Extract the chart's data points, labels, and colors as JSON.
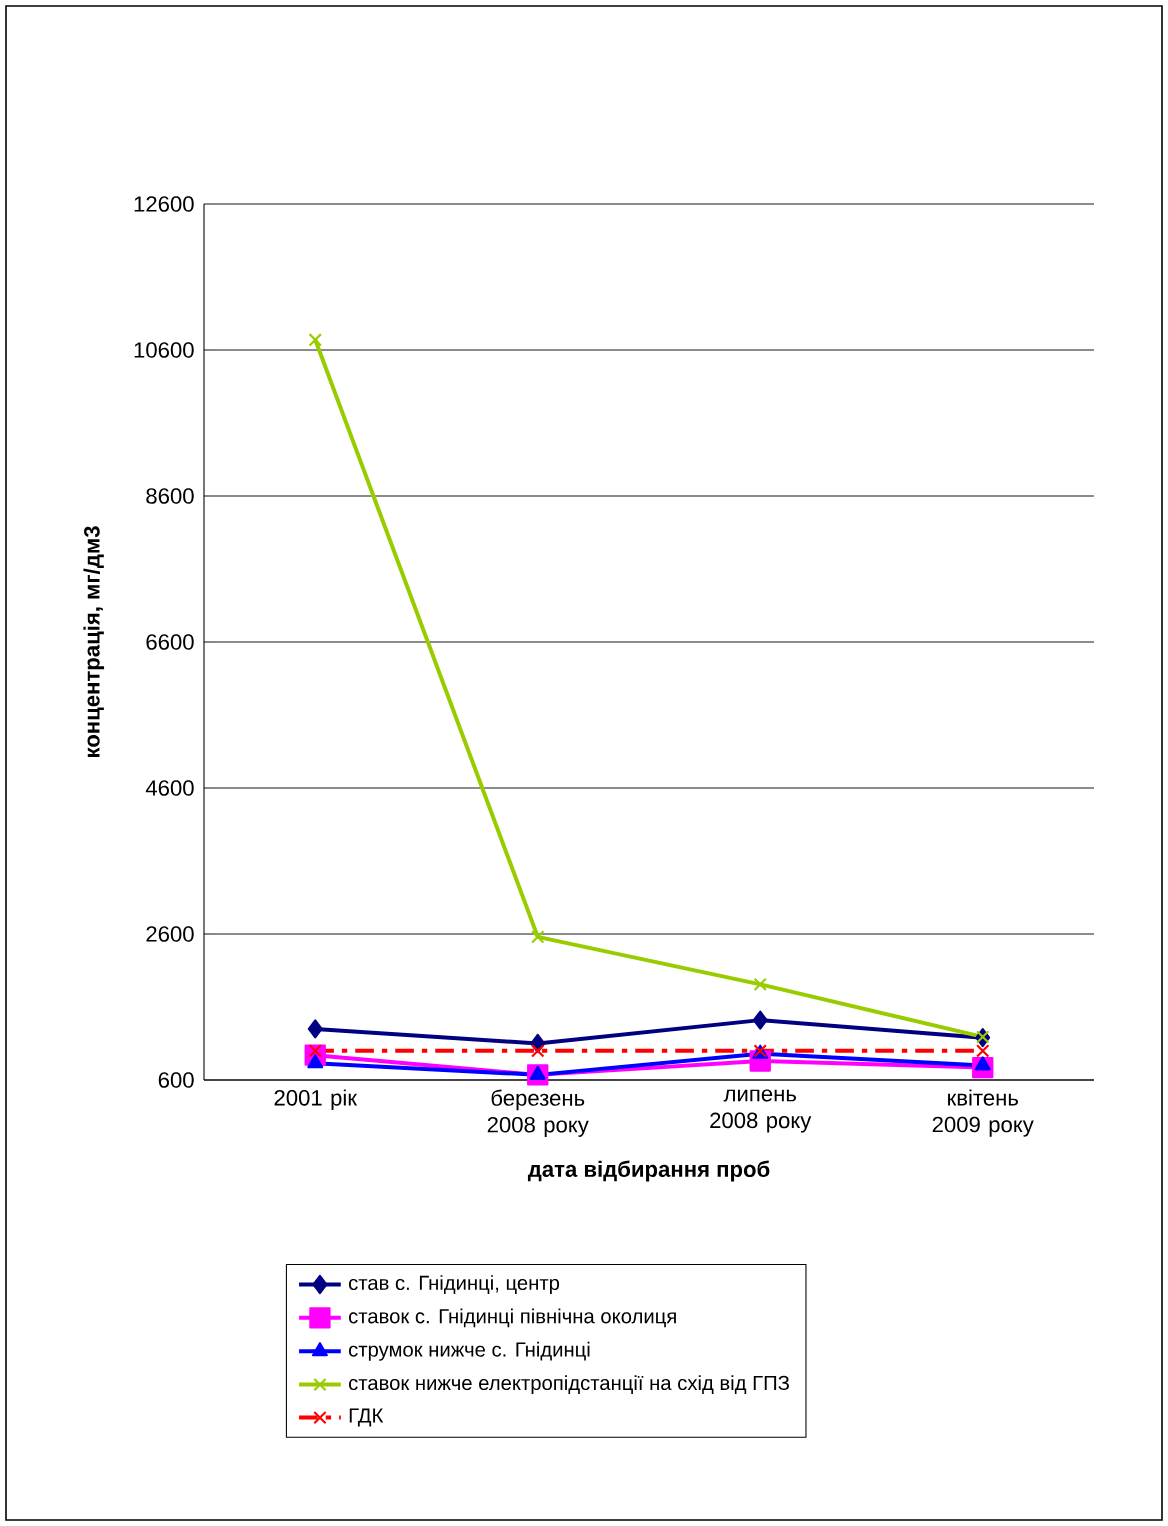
{
  "chart_data": {
    "type": "line",
    "xlabel": "дата відбирання проб",
    "ylabel": "концентрація, мг/дм3",
    "categories": [
      "2001 рік",
      "березень 2008 року",
      "липень 2008 року",
      "квітень 2009 року"
    ],
    "series": [
      {
        "name": "став с. Гнідинці, центр",
        "color": "#000080",
        "marker": "diamond",
        "values": [
          1300,
          1100,
          1420,
          1180
        ]
      },
      {
        "name": "ставок с. Гнідинці  північна околиця",
        "color": "#ff00ff",
        "marker": "square",
        "values": [
          940,
          670,
          860,
          770
        ]
      },
      {
        "name": "струмок нижче с. Гнідинці",
        "color": "#0000ff",
        "marker": "triangle",
        "values": [
          830,
          670,
          960,
          800
        ]
      },
      {
        "name": "ставок нижче електропідстанції на схід від ГПЗ",
        "color": "#99cc00",
        "marker": "cross",
        "values": [
          10740,
          2560,
          1910,
          1190
        ]
      },
      {
        "name": "ГДК",
        "color": "#ff0000",
        "marker": "cross",
        "line_style": "dashed",
        "values": [
          1000,
          1000,
          1000,
          1000
        ]
      }
    ],
    "ylim": [
      600,
      12600
    ],
    "yticks": [
      600,
      2600,
      4600,
      6600,
      8600,
      10600,
      12600
    ],
    "grid": "y",
    "legend": "bottom"
  }
}
